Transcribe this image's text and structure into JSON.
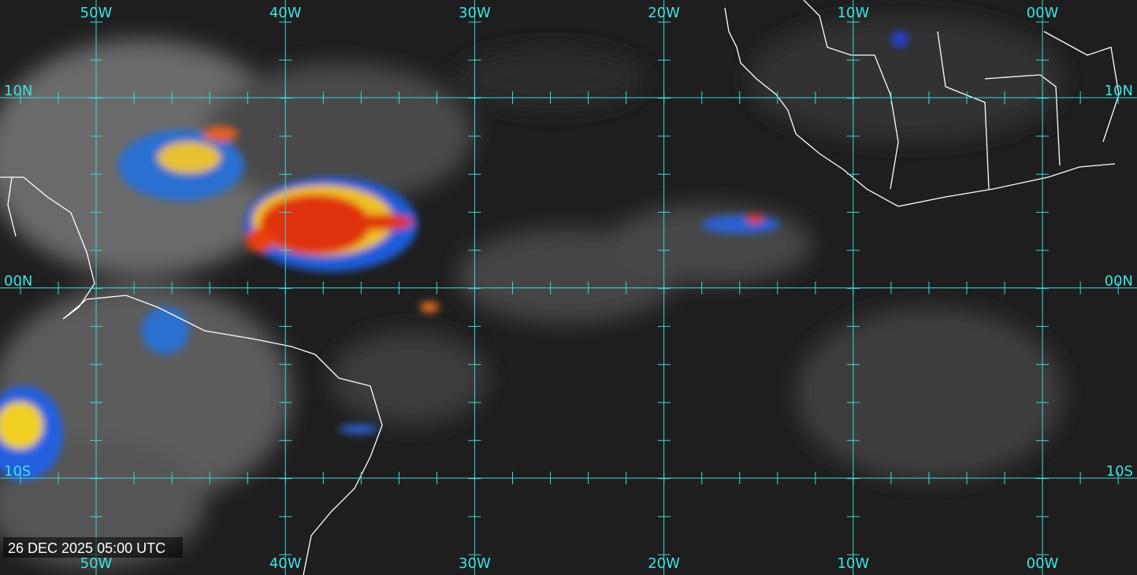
{
  "map": {
    "longitude_labels": [
      "50W",
      "40W",
      "30W",
      "20W",
      "10W",
      "00W"
    ],
    "latitude_labels": [
      "10N",
      "00N",
      "10S"
    ],
    "timestamp": "26 DEC 2025 05:00 UTC"
  }
}
